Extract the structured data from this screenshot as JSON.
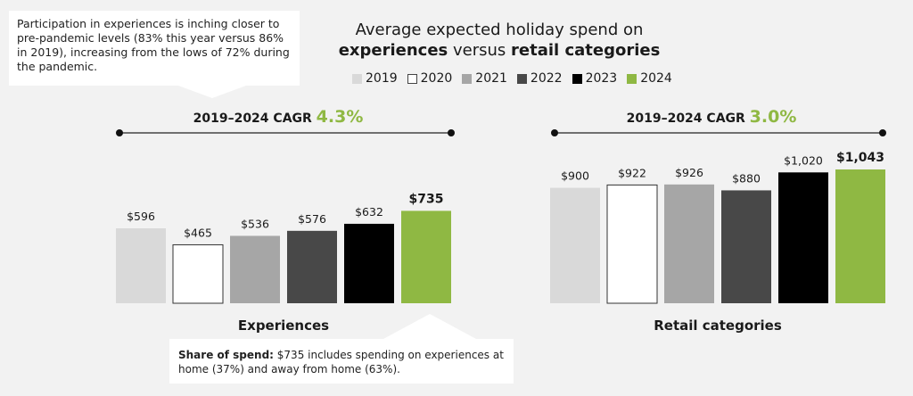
{
  "callout_top": {
    "text": "Participation in experiences is inching closer to pre-pandemic levels (83% this year versus 86% in 2019), increasing from the lows of 72% during the pandemic."
  },
  "callout_bottom": {
    "bold": "Share of spend:",
    "text": " $735 includes spending on experiences at home (37%) and away from home (63%)."
  },
  "title": {
    "line1": "Average expected holiday spend on",
    "bold1": "experiences",
    "mid": " versus ",
    "bold2": "retail categories"
  },
  "colors": {
    "2019": "#d9d9d9",
    "2020": "#ffffff",
    "2021": "#a6a6a6",
    "2022": "#484848",
    "2023": "#000000",
    "2024": "#8fb843",
    "accent": "#8fb843"
  },
  "chart_data": [
    {
      "type": "bar",
      "title": "Experiences",
      "cagr_label": "2019–2024 CAGR",
      "cagr_value": "4.3%",
      "categories": [
        "2019",
        "2020",
        "2021",
        "2022",
        "2023",
        "2024"
      ],
      "values": [
        596,
        465,
        536,
        576,
        632,
        735
      ],
      "labels": [
        "$596",
        "$465",
        "$536",
        "$576",
        "$632",
        "$735"
      ],
      "legend": [
        "2019",
        "2020",
        "2021",
        "2022",
        "2023",
        "2024"
      ],
      "legend_position": "top"
    },
    {
      "type": "bar",
      "title": "Retail categories",
      "cagr_label": "2019–2024 CAGR",
      "cagr_value": "3.0%",
      "categories": [
        "2019",
        "2020",
        "2021",
        "2022",
        "2023",
        "2024"
      ],
      "values": [
        900,
        922,
        926,
        880,
        1020,
        1043
      ],
      "labels": [
        "$900",
        "$922",
        "$926",
        "$880",
        "$1,020",
        "$1,043"
      ],
      "legend": [
        "2019",
        "2020",
        "2021",
        "2022",
        "2023",
        "2024"
      ],
      "legend_position": "top"
    }
  ]
}
